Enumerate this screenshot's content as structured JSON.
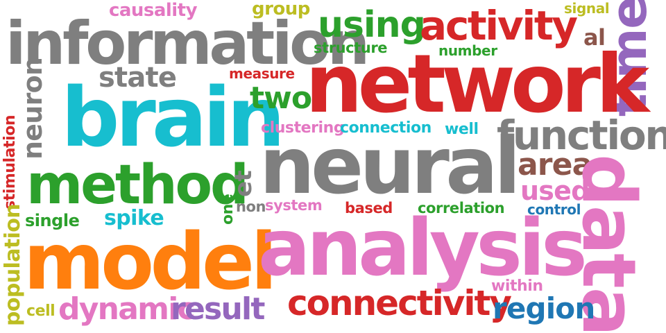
{
  "words": [
    {
      "id": "causality",
      "text": "causality",
      "color": "#e377c2"
    },
    {
      "id": "group",
      "text": "group",
      "color": "#bcbd22"
    },
    {
      "id": "signal",
      "text": "signal",
      "color": "#bcbd22"
    },
    {
      "id": "information",
      "text": "information",
      "color": "#7f7f7f"
    },
    {
      "id": "using",
      "text": "using",
      "color": "#2ca02c"
    },
    {
      "id": "activity",
      "text": "activity",
      "color": "#d62728"
    },
    {
      "id": "al",
      "text": "al",
      "color": "#8c564b"
    },
    {
      "id": "time",
      "text": "time",
      "color": "#9467bd"
    },
    {
      "id": "structure",
      "text": "structure",
      "color": "#2ca02c"
    },
    {
      "id": "number",
      "text": "number",
      "color": "#2ca02c"
    },
    {
      "id": "network",
      "text": "network",
      "color": "#d62728"
    },
    {
      "id": "measure",
      "text": "measure",
      "color": "#d62728"
    },
    {
      "id": "state",
      "text": "state",
      "color": "#7f7f7f"
    },
    {
      "id": "neuron",
      "text": "neuron",
      "color": "#7f7f7f"
    },
    {
      "id": "brain",
      "text": "brain",
      "color": "#17becf"
    },
    {
      "id": "two",
      "text": "two",
      "color": "#2ca02c"
    },
    {
      "id": "clustering",
      "text": "clustering",
      "color": "#e377c2"
    },
    {
      "id": "connection",
      "text": "connection",
      "color": "#17becf"
    },
    {
      "id": "well",
      "text": "well",
      "color": "#17becf"
    },
    {
      "id": "functional",
      "text": "functional",
      "color": "#7f7f7f"
    },
    {
      "id": "stimulation",
      "text": "stimulation",
      "color": "#d62728"
    },
    {
      "id": "neural",
      "text": "neural",
      "color": "#7f7f7f"
    },
    {
      "id": "area",
      "text": "area",
      "color": "#8c564b"
    },
    {
      "id": "method",
      "text": "method",
      "color": "#2ca02c"
    },
    {
      "id": "et",
      "text": "et",
      "color": "#7f7f7f"
    },
    {
      "id": "used",
      "text": "used",
      "color": "#e377c2"
    },
    {
      "id": "data",
      "text": "data",
      "color": "#e377c2"
    },
    {
      "id": "one",
      "text": "one",
      "color": "#2ca02c"
    },
    {
      "id": "non",
      "text": "non",
      "color": "#7f7f7f"
    },
    {
      "id": "system",
      "text": "system",
      "color": "#e377c2"
    },
    {
      "id": "based",
      "text": "based",
      "color": "#d62728"
    },
    {
      "id": "correlation",
      "text": "correlation",
      "color": "#2ca02c"
    },
    {
      "id": "control",
      "text": "control",
      "color": "#1f77b4"
    },
    {
      "id": "single",
      "text": "single",
      "color": "#2ca02c"
    },
    {
      "id": "spike",
      "text": "spike",
      "color": "#17becf"
    },
    {
      "id": "population",
      "text": "population",
      "color": "#bcbd22"
    },
    {
      "id": "model",
      "text": "model",
      "color": "#ff7f0e"
    },
    {
      "id": "analysis",
      "text": "analysis",
      "color": "#e377c2"
    },
    {
      "id": "within",
      "text": "within",
      "color": "#e377c2"
    },
    {
      "id": "connectivity",
      "text": "connectivity",
      "color": "#d62728"
    },
    {
      "id": "region",
      "text": "region",
      "color": "#1f77b4"
    },
    {
      "id": "cell",
      "text": "cell",
      "color": "#bcbd22"
    },
    {
      "id": "dynamic",
      "text": "dynamic",
      "color": "#e377c2"
    },
    {
      "id": "result",
      "text": "result",
      "color": "#9467bd"
    }
  ]
}
